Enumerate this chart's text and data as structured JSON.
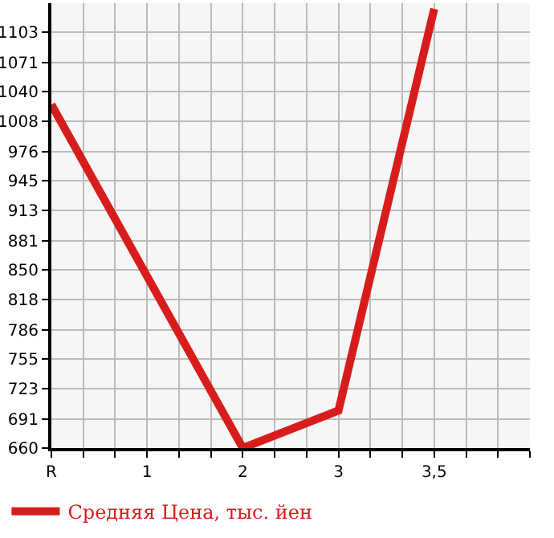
{
  "chart_data": {
    "type": "line",
    "categories": [
      "R",
      "1",
      "2",
      "3",
      "3,5",
      null
    ],
    "series": [
      {
        "name": "Средняя Цена, тыс. йен",
        "color": "#d71c1c",
        "values": [
          1026,
          null,
          660,
          700,
          1128,
          null
        ]
      }
    ],
    "ylim": [
      660,
      1134
    ],
    "yticks": [
      660,
      691,
      723,
      755,
      786,
      818,
      850,
      881,
      913,
      945,
      976,
      1008,
      1040,
      1071,
      1103
    ],
    "grid": true,
    "legend": "bottom left",
    "marker": "none",
    "line_style": "solid"
  }
}
